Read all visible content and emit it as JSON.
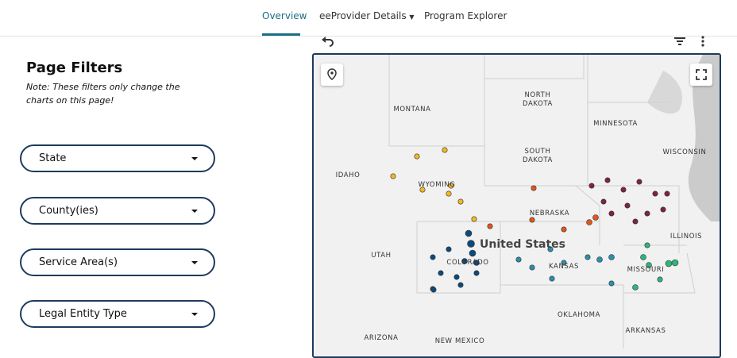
{
  "nav": {
    "tabs": [
      "Overview",
      "eeProvider Details",
      "Program Explorer"
    ]
  },
  "filters": {
    "title": "Page Filters",
    "note": "Note: These filters only change the charts on this page!",
    "dropdowns": [
      "State",
      "County(ies)",
      "Service Area(s)",
      "Legal Entity Type"
    ]
  },
  "map": {
    "country": "United States",
    "labels": [
      "MONTANA",
      "NORTH DAKOTA",
      "MINNESOTA",
      "SOUTH DAKOTA",
      "WISCONSIN",
      "IDAHO",
      "WYOMING",
      "NEBRASKA",
      "ILLINOIS",
      "UTAH",
      "COLORADO",
      "KANSAS",
      "MISSOURI",
      "OKLAHOMA",
      "ARKANSAS",
      "ARIZONA",
      "NEW MEXICO"
    ]
  }
}
